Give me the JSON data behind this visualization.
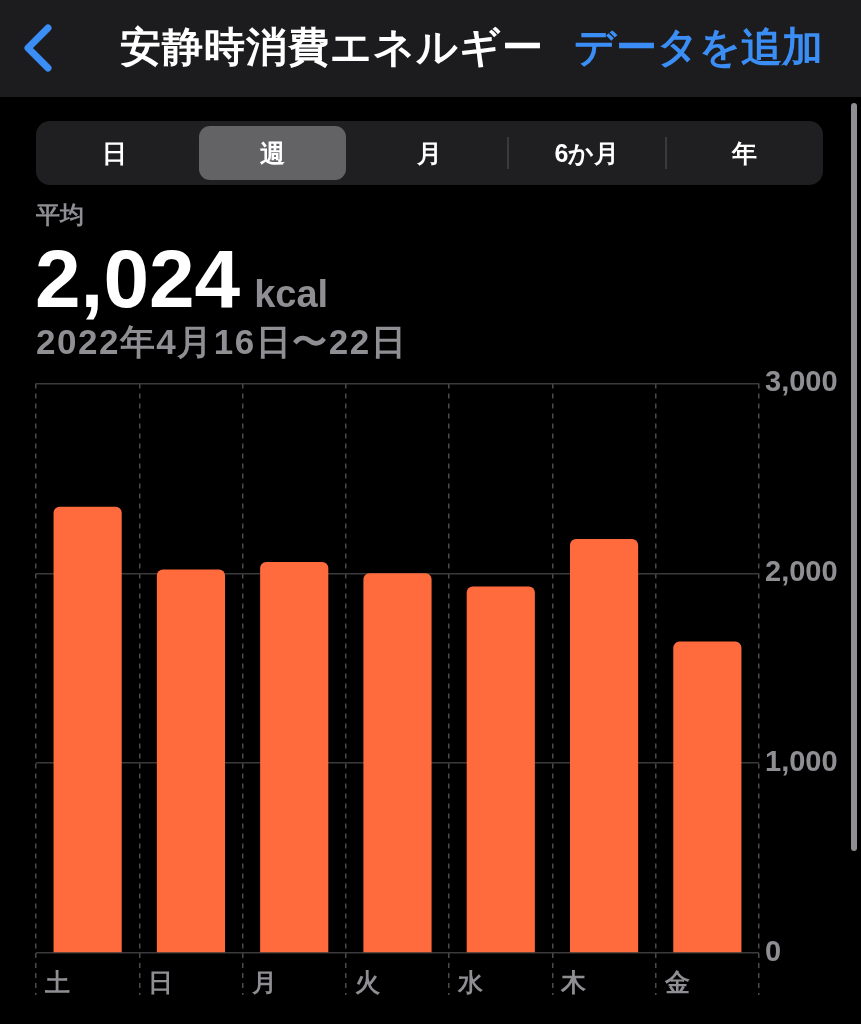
{
  "chart_data": {
    "type": "bar",
    "title": "安静時消費エネルギー",
    "annotations": [
      "データを追加",
      "日",
      "週",
      "月",
      "6か月",
      "年",
      "平均",
      "2,024",
      "kcal",
      "2022年4月16日〜22日"
    ],
    "categories": [
      "土",
      "日",
      "月",
      "火",
      "水",
      "木",
      "金"
    ],
    "values": [
      2350,
      2020,
      2060,
      2000,
      1930,
      2180,
      1640
    ],
    "color": "#ff6b3d",
    "ylim": [
      0,
      3000
    ],
    "yticks": [
      0,
      {
        "value": 1000,
        "label": "1,000"
      },
      {
        "value": 2000,
        "label": "2,000"
      },
      {
        "value": 3000,
        "label": "3,000"
      }
    ],
    "grid": true,
    "legend": false
  }
}
